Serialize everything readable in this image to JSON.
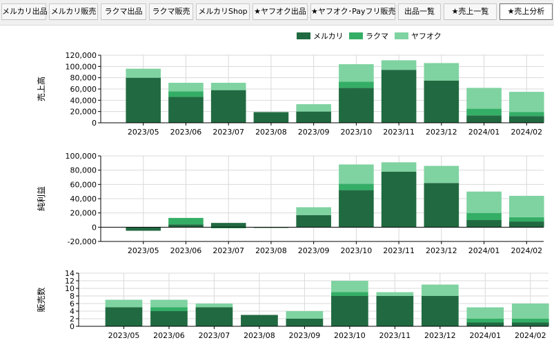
{
  "tabs": [
    {
      "label": "メルカリ出品",
      "active": false
    },
    {
      "label": "メルカリ販売",
      "active": false
    },
    {
      "label": "ラクマ出品",
      "active": false
    },
    {
      "label": "ラクマ販売",
      "active": false
    },
    {
      "label": "メルカリShop",
      "active": false
    },
    {
      "label": "★ヤフオク出品",
      "active": false
    },
    {
      "label": "★ヤフオク･Payフリ販売",
      "active": false
    },
    {
      "label": "出品一覧",
      "active": false
    },
    {
      "label": "★売上一覧",
      "active": false
    },
    {
      "label": "★売上分析",
      "active": true
    }
  ],
  "legend": {
    "placement": "top-right",
    "items": [
      {
        "name": "メルカリ",
        "color": "#216A41"
      },
      {
        "name": "ラクマ",
        "color": "#34AE66"
      },
      {
        "name": "ヤフオク",
        "color": "#7FD3A1"
      }
    ]
  },
  "chart_data": [
    {
      "type": "bar",
      "stacked": true,
      "ylabel": "売上高",
      "categories": [
        "2023/05",
        "2023/06",
        "2023/07",
        "2023/08",
        "2023/09",
        "2023/10",
        "2023/11",
        "2023/12",
        "2024/01",
        "2024/02"
      ],
      "ylim": [
        0,
        120000
      ],
      "yticks": [
        0,
        20000,
        40000,
        60000,
        80000,
        100000,
        120000
      ],
      "ytick_labels": [
        "0",
        "20,000",
        "40,000",
        "60,000",
        "80,000",
        "100,000",
        "120,000"
      ],
      "grid": true,
      "series": [
        {
          "name": "メルカリ",
          "values": [
            80000,
            46000,
            58000,
            19000,
            20000,
            62000,
            94000,
            75000,
            13000,
            12000
          ]
        },
        {
          "name": "ラクマ",
          "values": [
            0,
            10000,
            0,
            0,
            0,
            11000,
            0,
            0,
            12000,
            7000
          ]
        },
        {
          "name": "ヤフオク",
          "values": [
            16000,
            15000,
            13000,
            0,
            13000,
            31000,
            17000,
            31000,
            37000,
            36000
          ]
        }
      ]
    },
    {
      "type": "bar",
      "stacked": true,
      "ylabel": "純利益",
      "categories": [
        "2023/05",
        "2023/06",
        "2023/07",
        "2023/08",
        "2023/09",
        "2023/10",
        "2023/11",
        "2023/12",
        "2024/01",
        "2024/02"
      ],
      "ylim": [
        -20000,
        100000
      ],
      "yticks": [
        -20000,
        0,
        20000,
        40000,
        60000,
        80000,
        100000
      ],
      "ytick_labels": [
        "-20,000",
        "0",
        "20,000",
        "40,000",
        "60,000",
        "80,000",
        "100,000"
      ],
      "grid": true,
      "series": [
        {
          "name": "メルカリ",
          "values": [
            -5000,
            4000,
            6000,
            -1000,
            17000,
            52000,
            78000,
            62000,
            10000,
            8000
          ]
        },
        {
          "name": "ラクマ",
          "values": [
            0,
            9000,
            -1500,
            0,
            0,
            9000,
            0,
            0,
            10000,
            6000
          ]
        },
        {
          "name": "ヤフオク",
          "values": [
            0,
            0,
            0,
            0,
            11000,
            27000,
            13000,
            24000,
            30000,
            30000
          ]
        }
      ]
    },
    {
      "type": "bar",
      "stacked": true,
      "ylabel": "販売数",
      "categories": [
        "2023/05",
        "2023/06",
        "2023/07",
        "2023/08",
        "2023/09",
        "2023/10",
        "2023/11",
        "2023/12",
        "2024/01",
        "2024/02"
      ],
      "ylim": [
        0,
        14
      ],
      "yticks": [
        0,
        2,
        4,
        6,
        8,
        10,
        12,
        14
      ],
      "ytick_labels": [
        "0",
        "2",
        "4",
        "6",
        "8",
        "10",
        "12",
        "14"
      ],
      "grid": true,
      "series": [
        {
          "name": "メルカリ",
          "values": [
            5,
            4,
            5,
            3,
            2,
            8,
            8,
            8,
            1,
            1
          ]
        },
        {
          "name": "ラクマ",
          "values": [
            0,
            1,
            0,
            0,
            0,
            1,
            0,
            0,
            1,
            1
          ]
        },
        {
          "name": "ヤフオク",
          "values": [
            2,
            2,
            1,
            0,
            2,
            3,
            1,
            3,
            3,
            4
          ]
        }
      ]
    }
  ]
}
